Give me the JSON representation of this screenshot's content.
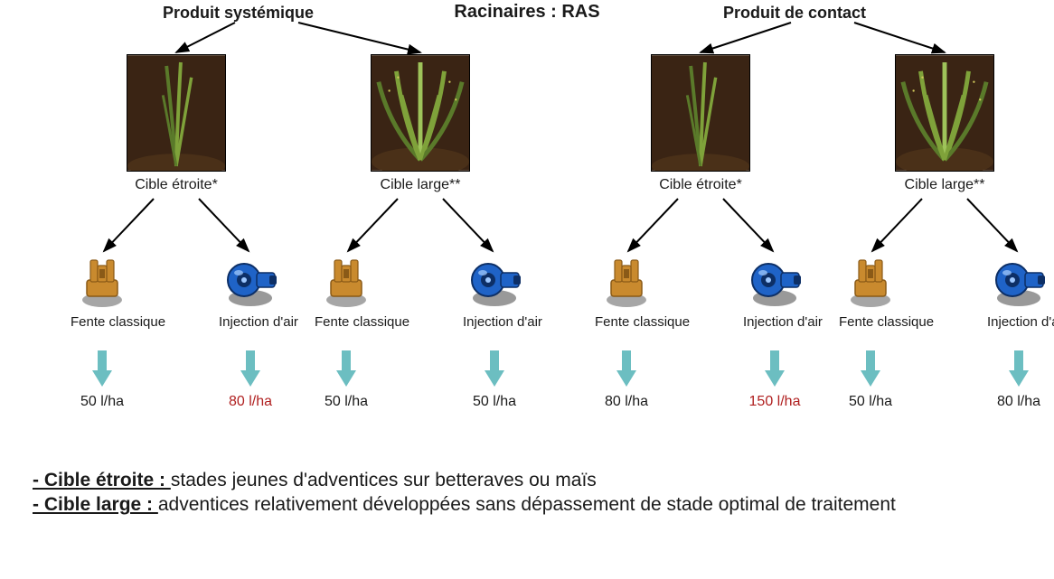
{
  "title_center": "Racinaires : RAS",
  "product_left_label": "Produit systémique",
  "product_right_label": "Produit de contact",
  "cible_etroite_label": "Cible étroite*",
  "cible_large_label": "Cible large**",
  "nozzle_fente_label": "Fente classique",
  "nozzle_injection_label": "Injection d'air",
  "layout": {
    "branch_x": [
      60,
      330,
      640,
      910
    ],
    "product_label_left_x": 180,
    "product_label_right_x": 800
  },
  "colors": {
    "arrow_black": "#000000",
    "arrow_teal": "#6cbec1",
    "nozzle_orange_body": "#c98a2e",
    "nozzle_orange_dark": "#8a5a17",
    "nozzle_blue_body": "#1f63c7",
    "nozzle_blue_dark": "#0d2f66",
    "plant_bg": "#3a2414",
    "plant_green1": "#5a7a2a",
    "plant_green2": "#7fa23a",
    "plant_green3": "#9ec35a",
    "rate_red": "#b02020"
  },
  "branches": [
    {
      "plant": "narrow",
      "cible": "etroite",
      "nozzles": [
        {
          "type": "fente",
          "rate": "50 l/ha",
          "red": false
        },
        {
          "type": "injection",
          "rate": "80 l/ha",
          "red": true
        }
      ]
    },
    {
      "plant": "wide",
      "cible": "large",
      "nozzles": [
        {
          "type": "fente",
          "rate": "50 l/ha",
          "red": false
        },
        {
          "type": "injection",
          "rate": "50 l/ha",
          "red": false
        }
      ]
    },
    {
      "plant": "narrow",
      "cible": "etroite",
      "nozzles": [
        {
          "type": "fente",
          "rate": "80 l/ha",
          "red": false
        },
        {
          "type": "injection",
          "rate": "150 l/ha",
          "red": true
        }
      ]
    },
    {
      "plant": "wide",
      "cible": "large",
      "nozzles": [
        {
          "type": "fente",
          "rate": "50 l/ha",
          "red": false
        },
        {
          "type": "injection",
          "rate": "80 l/ha",
          "red": false
        }
      ]
    }
  ],
  "defs": {
    "etroite_lead": "- Cible étroite : ",
    "etroite_rest": "stades jeunes d'adventices sur betteraves ou maïs",
    "large_lead": "- Cible large : ",
    "large_rest": "adventices relativement développées sans dépassement de stade optimal de traitement"
  }
}
